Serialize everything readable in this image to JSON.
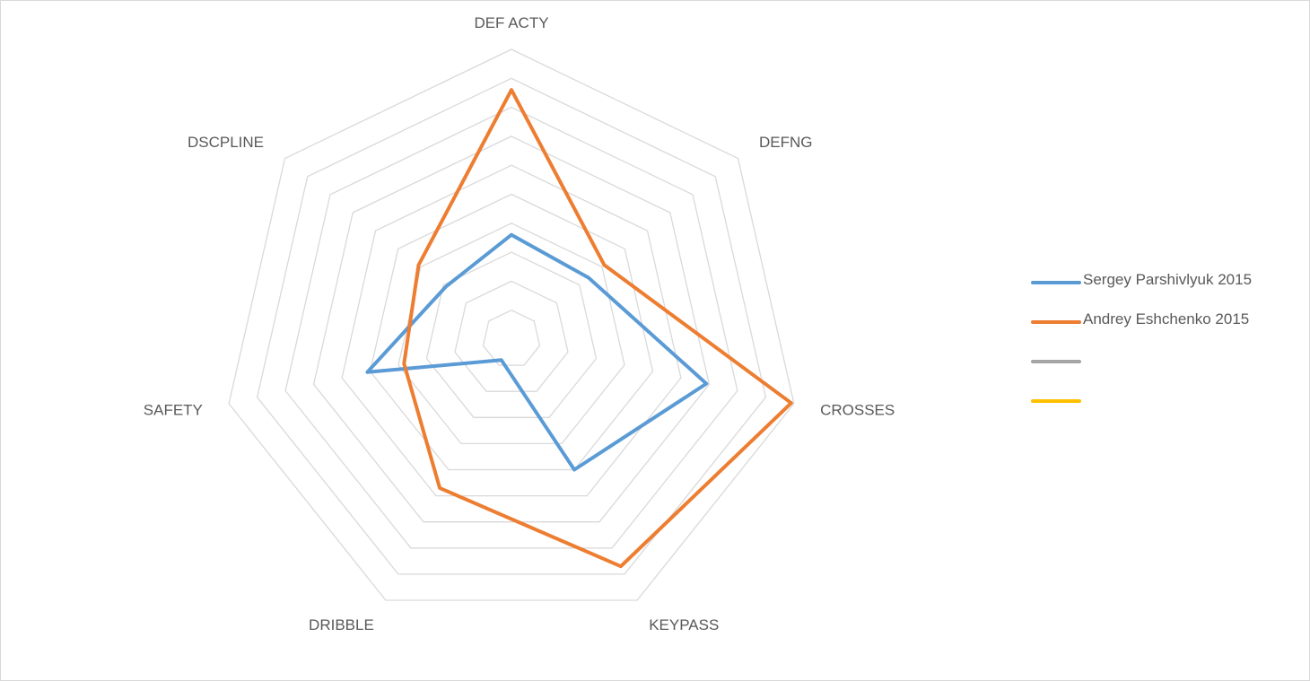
{
  "chart_data": {
    "type": "radar",
    "axes": [
      "DEF ACTY",
      "DEFNG",
      "CROSSES",
      "KEYPASS",
      "DRIBBLE",
      "SAFETY",
      "DSCPLINE"
    ],
    "rmax": 10,
    "ring_count": 10,
    "grid": true,
    "legend_position": "right",
    "series": [
      {
        "name": "Sergey Parshivlyuk 2015",
        "color": "#5b9bd5",
        "values": [
          3.6,
          3.4,
          6.9,
          5.0,
          0.8,
          5.1,
          2.9
        ]
      },
      {
        "name": "Andrey Eshchenko 2015",
        "color": "#ed7d31",
        "values": [
          8.6,
          4.1,
          9.9,
          8.7,
          5.7,
          3.8,
          4.1
        ]
      },
      {
        "name": "",
        "color": "#a5a5a5",
        "values": []
      },
      {
        "name": "",
        "color": "#ffc000",
        "values": []
      }
    ]
  }
}
